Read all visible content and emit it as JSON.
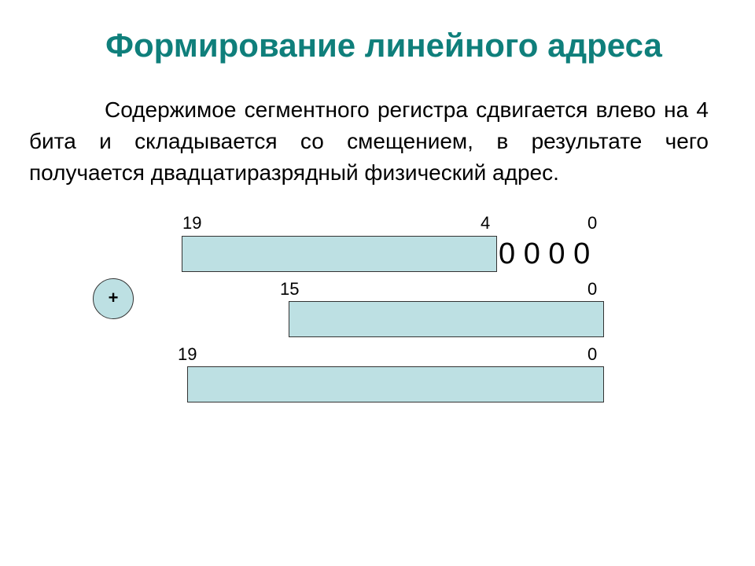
{
  "slide": {
    "title": "Формирование линейного адреса",
    "body": "Содержимое сегментного регистра сдвигается влево на 4 бита и складывается со смещением, в результате чего получается двадцатиразрядный физический адрес."
  },
  "diagram": {
    "segment": {
      "bit_high": "19",
      "bit_mid": "4",
      "bit_low": "0",
      "shift_zeros": "0 0 0 0"
    },
    "offset": {
      "bit_high": "15",
      "bit_low": "0"
    },
    "physical": {
      "bit_high": "19",
      "bit_low": "0"
    },
    "operator": "+"
  },
  "colors": {
    "title": "#0f7f7b",
    "register_fill": "#bde0e3"
  }
}
